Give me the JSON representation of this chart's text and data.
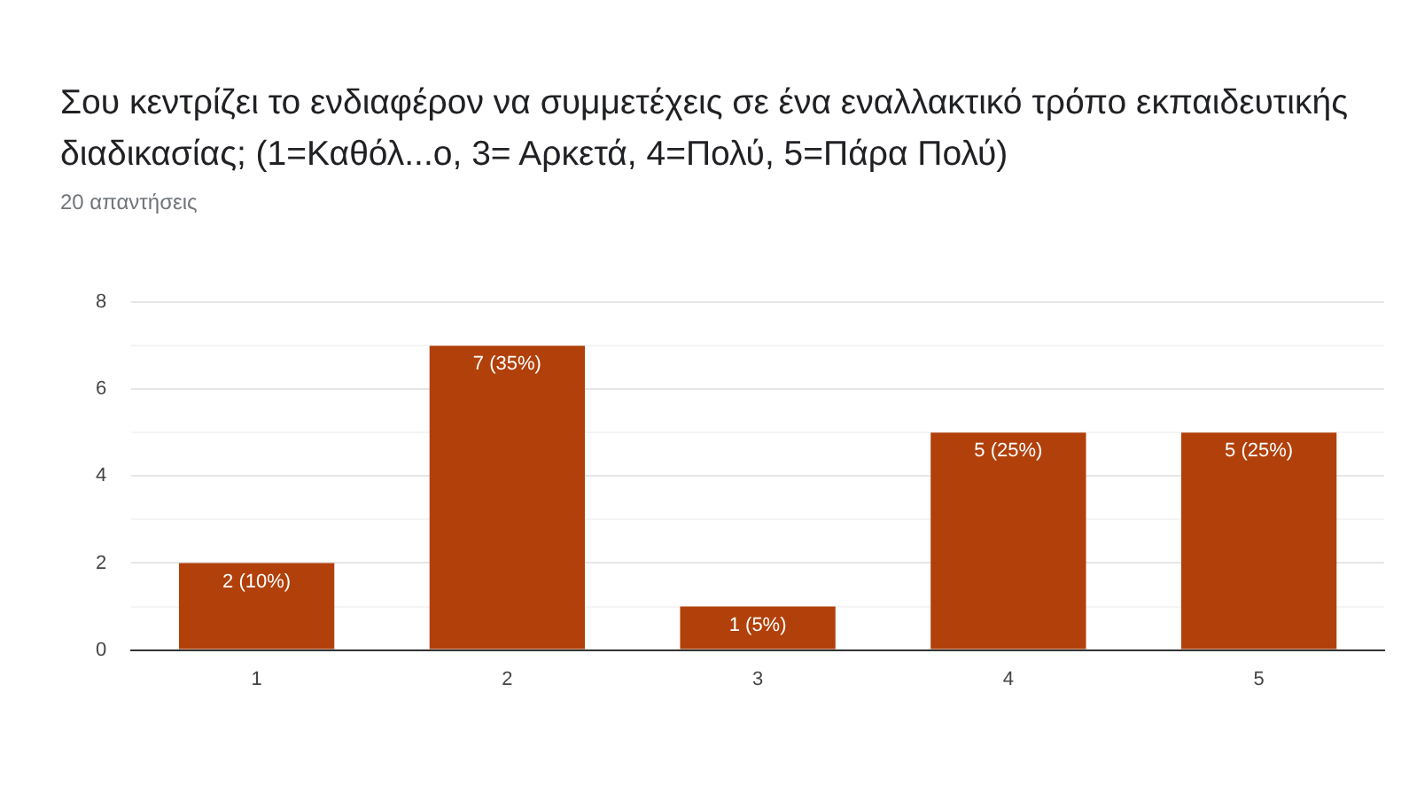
{
  "chart_data": {
    "type": "bar",
    "title": "Σου κεντρίζει το ενδιαφέρον να συμμετέχεις σε ένα εναλλακτικό τρόπο εκπαιδευτικής διαδικασίας; (1=Καθόλ...ο, 3= Αρκετά, 4=Πολύ, 5=Πάρα Πολύ)",
    "subtitle": "20 απαντήσεις",
    "categories": [
      "1",
      "2",
      "3",
      "4",
      "5"
    ],
    "values": [
      2,
      7,
      1,
      5,
      5
    ],
    "value_labels": [
      "2 (10%)",
      "7 (35%)",
      "1 (5%)",
      "5 (25%)",
      "5 (25%)"
    ],
    "color": "#b2400a",
    "ylim": [
      0,
      8
    ],
    "yticks": [
      0,
      {
        "value": 1,
        "label": null
      },
      2,
      {
        "value": 3,
        "label": null
      },
      4,
      {
        "value": 5,
        "label": null
      },
      6,
      {
        "value": 7,
        "label": null
      },
      8
    ],
    "grid": "y",
    "legend": false
  }
}
